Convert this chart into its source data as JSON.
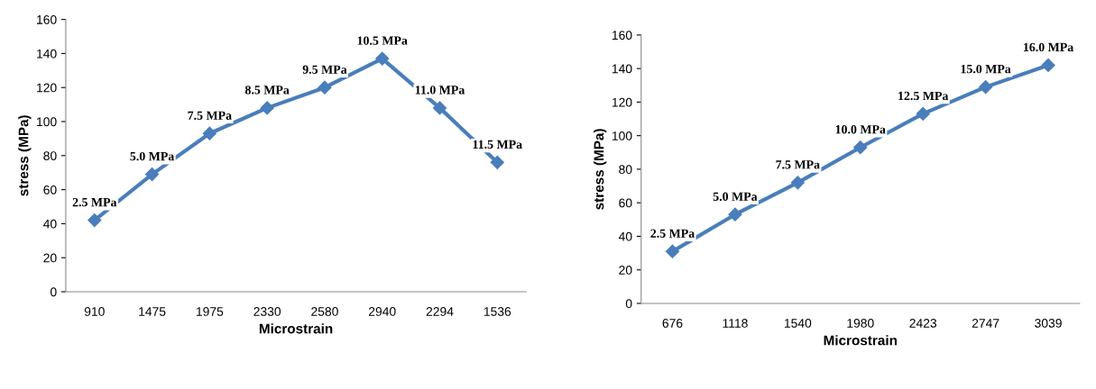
{
  "chart_data": [
    {
      "type": "line",
      "xlabel": "Microstrain",
      "ylabel": "stress (MPa)",
      "categories": [
        "910",
        "1475",
        "1975",
        "2330",
        "2580",
        "2940",
        "2294",
        "1536"
      ],
      "series": [
        {
          "color": "#4a7ebb",
          "values": [
            42,
            69,
            93,
            108,
            120,
            137,
            108,
            76
          ]
        }
      ],
      "ylim": [
        0,
        160
      ],
      "yticks": [
        0,
        20,
        40,
        60,
        80,
        100,
        120,
        140,
        160
      ],
      "grid": false,
      "legend": false,
      "marker": "diamond",
      "line_style": "solid",
      "annotations": [
        {
          "text": "2.5 MPa",
          "x": "910",
          "y": 42
        },
        {
          "text": "5.0 MPa",
          "x": "1475",
          "y": 69
        },
        {
          "text": "7.5 MPa",
          "x": "1975",
          "y": 93
        },
        {
          "text": "8.5 MPa",
          "x": "2330",
          "y": 108
        },
        {
          "text": "9.5 MPa",
          "x": "2580",
          "y": 120
        },
        {
          "text": "10.5 MPa",
          "x": "2940",
          "y": 137
        },
        {
          "text": "11.0 MPa",
          "x": "2294",
          "y": 108
        },
        {
          "text": "11.5 MPa",
          "x": "1536",
          "y": 76
        }
      ]
    },
    {
      "type": "line",
      "xlabel": "Microstrain",
      "ylabel": "stress (MPa)",
      "categories": [
        "676",
        "1118",
        "1540",
        "1980",
        "2423",
        "2747",
        "3039"
      ],
      "series": [
        {
          "color": "#4a7ebb",
          "values": [
            31,
            53,
            72,
            93,
            113,
            129,
            142
          ]
        }
      ],
      "ylim": [
        0,
        160
      ],
      "yticks": [
        0,
        20,
        40,
        60,
        80,
        100,
        120,
        140,
        160
      ],
      "grid": false,
      "legend": false,
      "marker": "diamond",
      "line_style": "solid",
      "annotations": [
        {
          "text": "2.5 MPa",
          "x": "676",
          "y": 31
        },
        {
          "text": "5.0 MPa",
          "x": "1118",
          "y": 53
        },
        {
          "text": "7.5 MPa",
          "x": "1540",
          "y": 72
        },
        {
          "text": "10.0 MPa",
          "x": "1980",
          "y": 93
        },
        {
          "text": "12.5 MPa",
          "x": "2423",
          "y": 113
        },
        {
          "text": "15.0 MPa",
          "x": "2747",
          "y": 129
        },
        {
          "text": "16.0 MPa",
          "x": "3039",
          "y": 142
        }
      ]
    }
  ]
}
